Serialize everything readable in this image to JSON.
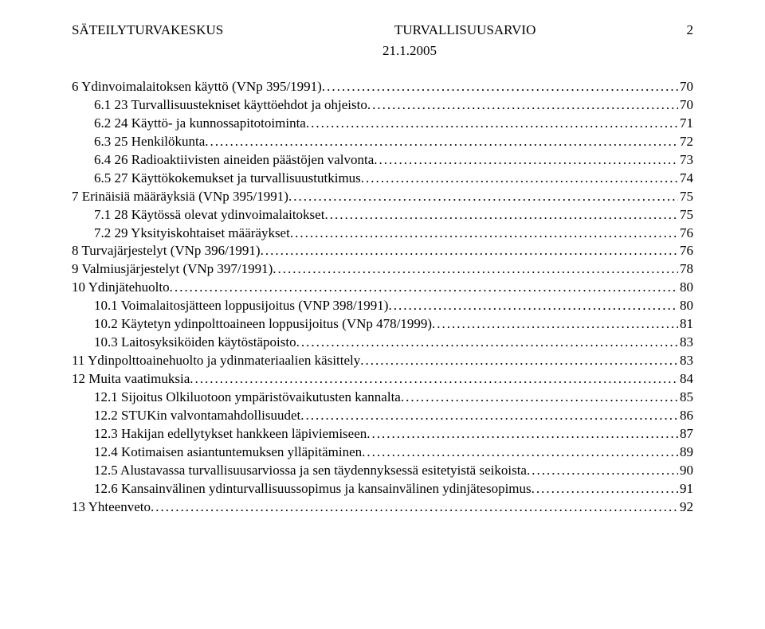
{
  "header": {
    "left": "SÄTEILYTURVAKESKUS",
    "mid": "TURVALLISUUSARVIO",
    "pagenum": "2",
    "date": "21.1.2005"
  },
  "toc": [
    {
      "indent": 0,
      "label": "6  Ydinvoimalaitoksen käyttö (VNp 395/1991)",
      "page": "70"
    },
    {
      "indent": 1,
      "label": "6.1  23 Turvallisuustekniset käyttöehdot ja ohjeisto",
      "page": "70"
    },
    {
      "indent": 1,
      "label": "6.2  24 Käyttö- ja kunnossapitotoiminta",
      "page": "71"
    },
    {
      "indent": 1,
      "label": "6.3  25 Henkilökunta",
      "page": "72"
    },
    {
      "indent": 1,
      "label": "6.4  26 Radioaktiivisten aineiden päästöjen valvonta",
      "page": "73"
    },
    {
      "indent": 1,
      "label": "6.5  27 Käyttökokemukset ja turvallisuustutkimus",
      "page": "74"
    },
    {
      "indent": 0,
      "label": "7  Erinäisiä määräyksiä (VNp 395/1991)",
      "page": "75"
    },
    {
      "indent": 1,
      "label": "7.1  28 Käytössä olevat ydinvoimalaitokset",
      "page": "75"
    },
    {
      "indent": 1,
      "label": "7.2  29 Yksityiskohtaiset määräykset",
      "page": "76"
    },
    {
      "indent": 0,
      "label": "8  Turvajärjestelyt (VNp 396/1991)",
      "page": "76"
    },
    {
      "indent": 0,
      "label": "9  Valmiusjärjestelyt (VNp 397/1991)",
      "page": "78"
    },
    {
      "indent": 0,
      "label": "10  Ydinjätehuolto",
      "page": "80"
    },
    {
      "indent": 1,
      "label": "10.1  Voimalaitosjätteen loppusijoitus (VNP 398/1991)",
      "page": "80"
    },
    {
      "indent": 1,
      "label": "10.2  Käytetyn ydinpolttoaineen loppusijoitus (VNp 478/1999)",
      "page": "81"
    },
    {
      "indent": 1,
      "label": "10.3  Laitosyksiköiden käytöstäpoisto",
      "page": "83"
    },
    {
      "indent": 0,
      "label": "11  Ydinpolttoainehuolto ja ydinmateriaalien käsittely",
      "page": "83"
    },
    {
      "indent": 0,
      "label": "12  Muita vaatimuksia",
      "page": "84"
    },
    {
      "indent": 1,
      "label": "12.1  Sijoitus Olkiluotoon ympäristövaikutusten kannalta",
      "page": "85"
    },
    {
      "indent": 1,
      "label": "12.2  STUKin valvontamahdollisuudet",
      "page": "86"
    },
    {
      "indent": 1,
      "label": "12.3  Hakijan edellytykset hankkeen läpiviemiseen",
      "page": "87"
    },
    {
      "indent": 1,
      "label": "12.4  Kotimaisen asiantuntemuksen ylläpitäminen",
      "page": "89"
    },
    {
      "indent": 1,
      "label": "12.5  Alustavassa turvallisuusarviossa ja sen täydennyksessä esitetyistä seikoista",
      "page": "90"
    },
    {
      "indent": 1,
      "label": "12.6  Kansainvälinen ydinturvallisuussopimus ja kansainvälinen ydinjätesopimus",
      "page": "91"
    },
    {
      "indent": 0,
      "label": "13  Yhteenveto",
      "page": "92"
    }
  ]
}
